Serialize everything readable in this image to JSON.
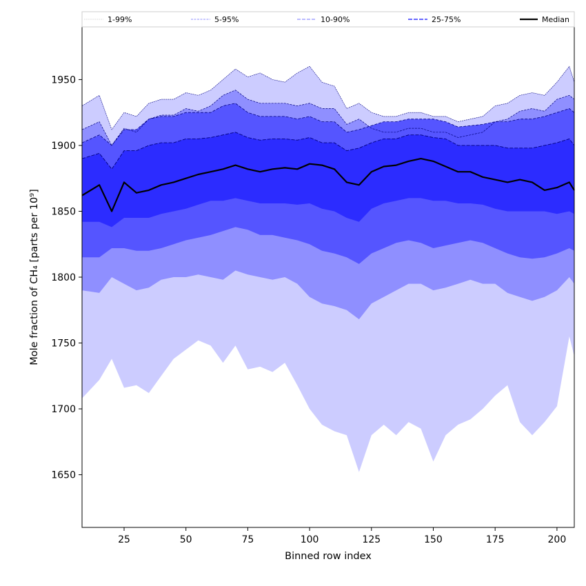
{
  "chart_data": {
    "type": "area",
    "title": "",
    "xlabel": "Binned row index",
    "ylabel": "Mole fraction of CH₄ [parts per 10⁹]",
    "xlim": [
      8,
      207
    ],
    "ylim": [
      1610,
      1990
    ],
    "x_ticks": [
      25,
      50,
      75,
      100,
      125,
      150,
      175,
      200
    ],
    "y_ticks": [
      1650,
      1700,
      1750,
      1800,
      1850,
      1900,
      1950
    ],
    "grid": false,
    "legend_position": "top",
    "legend": [
      "1-99%",
      "5-95%",
      "10-90%",
      "25-75%",
      "Median"
    ],
    "colors": {
      "band_1_99": "#ccccff",
      "band_5_95": "#8f8fff",
      "band_10_90": "#5555ff",
      "band_25_75": "#2c2cff",
      "median": "#000000",
      "band_edge": "#000080"
    },
    "x": [
      8,
      15,
      20,
      25,
      30,
      35,
      40,
      45,
      50,
      55,
      60,
      65,
      70,
      75,
      80,
      85,
      90,
      95,
      100,
      105,
      110,
      115,
      120,
      125,
      130,
      135,
      140,
      145,
      150,
      155,
      160,
      165,
      170,
      175,
      180,
      185,
      190,
      195,
      200,
      205,
      207
    ],
    "series": [
      {
        "name": "1-99%",
        "lower": [
          1708,
          1722,
          1738,
          1716,
          1718,
          1712,
          1725,
          1738,
          1745,
          1752,
          1748,
          1735,
          1748,
          1730,
          1732,
          1728,
          1735,
          1718,
          1700,
          1688,
          1683,
          1680,
          1652,
          1680,
          1688,
          1680,
          1690,
          1685,
          1660,
          1680,
          1688,
          1692,
          1700,
          1710,
          1718,
          1690,
          1680,
          1690,
          1702,
          1755,
          1740
        ],
        "upper": [
          1930,
          1938,
          1912,
          1925,
          1922,
          1932,
          1935,
          1935,
          1940,
          1938,
          1942,
          1950,
          1958,
          1952,
          1955,
          1950,
          1948,
          1955,
          1960,
          1948,
          1945,
          1928,
          1932,
          1925,
          1922,
          1922,
          1925,
          1925,
          1922,
          1922,
          1918,
          1920,
          1922,
          1930,
          1932,
          1938,
          1940,
          1938,
          1948,
          1960,
          1948
        ]
      },
      {
        "name": "5-95%",
        "lower": [
          1790,
          1788,
          1800,
          1795,
          1790,
          1792,
          1798,
          1800,
          1800,
          1802,
          1800,
          1798,
          1805,
          1802,
          1800,
          1798,
          1800,
          1795,
          1785,
          1780,
          1778,
          1775,
          1768,
          1780,
          1785,
          1790,
          1795,
          1795,
          1790,
          1792,
          1795,
          1798,
          1795,
          1795,
          1788,
          1785,
          1782,
          1785,
          1790,
          1800,
          1795
        ]
      },
      {
        "name": "10-90%",
        "lower": [
          1815,
          1815,
          1822,
          1822,
          1820,
          1820,
          1822,
          1825,
          1828,
          1830,
          1832,
          1835,
          1838,
          1836,
          1832,
          1832,
          1830,
          1828,
          1825,
          1820,
          1818,
          1815,
          1810,
          1818,
          1822,
          1826,
          1828,
          1826,
          1822,
          1824,
          1826,
          1828,
          1826,
          1822,
          1818,
          1815,
          1814,
          1815,
          1818,
          1822,
          1820
        ],
        "upper": [
          1902,
          1908,
          1900,
          1912,
          1912,
          1920,
          1922,
          1922,
          1925,
          1925,
          1925,
          1930,
          1932,
          1925,
          1922,
          1922,
          1922,
          1920,
          1922,
          1918,
          1918,
          1910,
          1912,
          1915,
          1918,
          1918,
          1920,
          1920,
          1920,
          1918,
          1914,
          1915,
          1916,
          1918,
          1918,
          1920,
          1920,
          1922,
          1925,
          1928,
          1925
        ]
      },
      {
        "name": "25-75%",
        "lower": [
          1842,
          1842,
          1838,
          1845,
          1845,
          1845,
          1848,
          1850,
          1852,
          1855,
          1858,
          1858,
          1860,
          1858,
          1856,
          1856,
          1856,
          1855,
          1856,
          1852,
          1850,
          1845,
          1842,
          1852,
          1856,
          1858,
          1860,
          1860,
          1858,
          1858,
          1856,
          1856,
          1855,
          1852,
          1850,
          1850,
          1850,
          1850,
          1848,
          1850,
          1848
        ],
        "upper": [
          1890,
          1894,
          1882,
          1896,
          1896,
          1900,
          1902,
          1902,
          1905,
          1905,
          1906,
          1908,
          1910,
          1906,
          1904,
          1905,
          1905,
          1904,
          1906,
          1902,
          1902,
          1896,
          1898,
          1902,
          1905,
          1905,
          1908,
          1908,
          1906,
          1905,
          1900,
          1900,
          1900,
          1900,
          1898,
          1898,
          1898,
          1900,
          1902,
          1905,
          1900
        ]
      },
      {
        "name": "Median",
        "values": [
          1862,
          1870,
          1850,
          1872,
          1864,
          1866,
          1870,
          1872,
          1875,
          1878,
          1880,
          1882,
          1885,
          1882,
          1880,
          1882,
          1883,
          1882,
          1886,
          1885,
          1882,
          1872,
          1870,
          1880,
          1884,
          1885,
          1888,
          1890,
          1888,
          1884,
          1880,
          1880,
          1876,
          1874,
          1872,
          1874,
          1872,
          1866,
          1868,
          1872,
          1866
        ]
      }
    ]
  }
}
